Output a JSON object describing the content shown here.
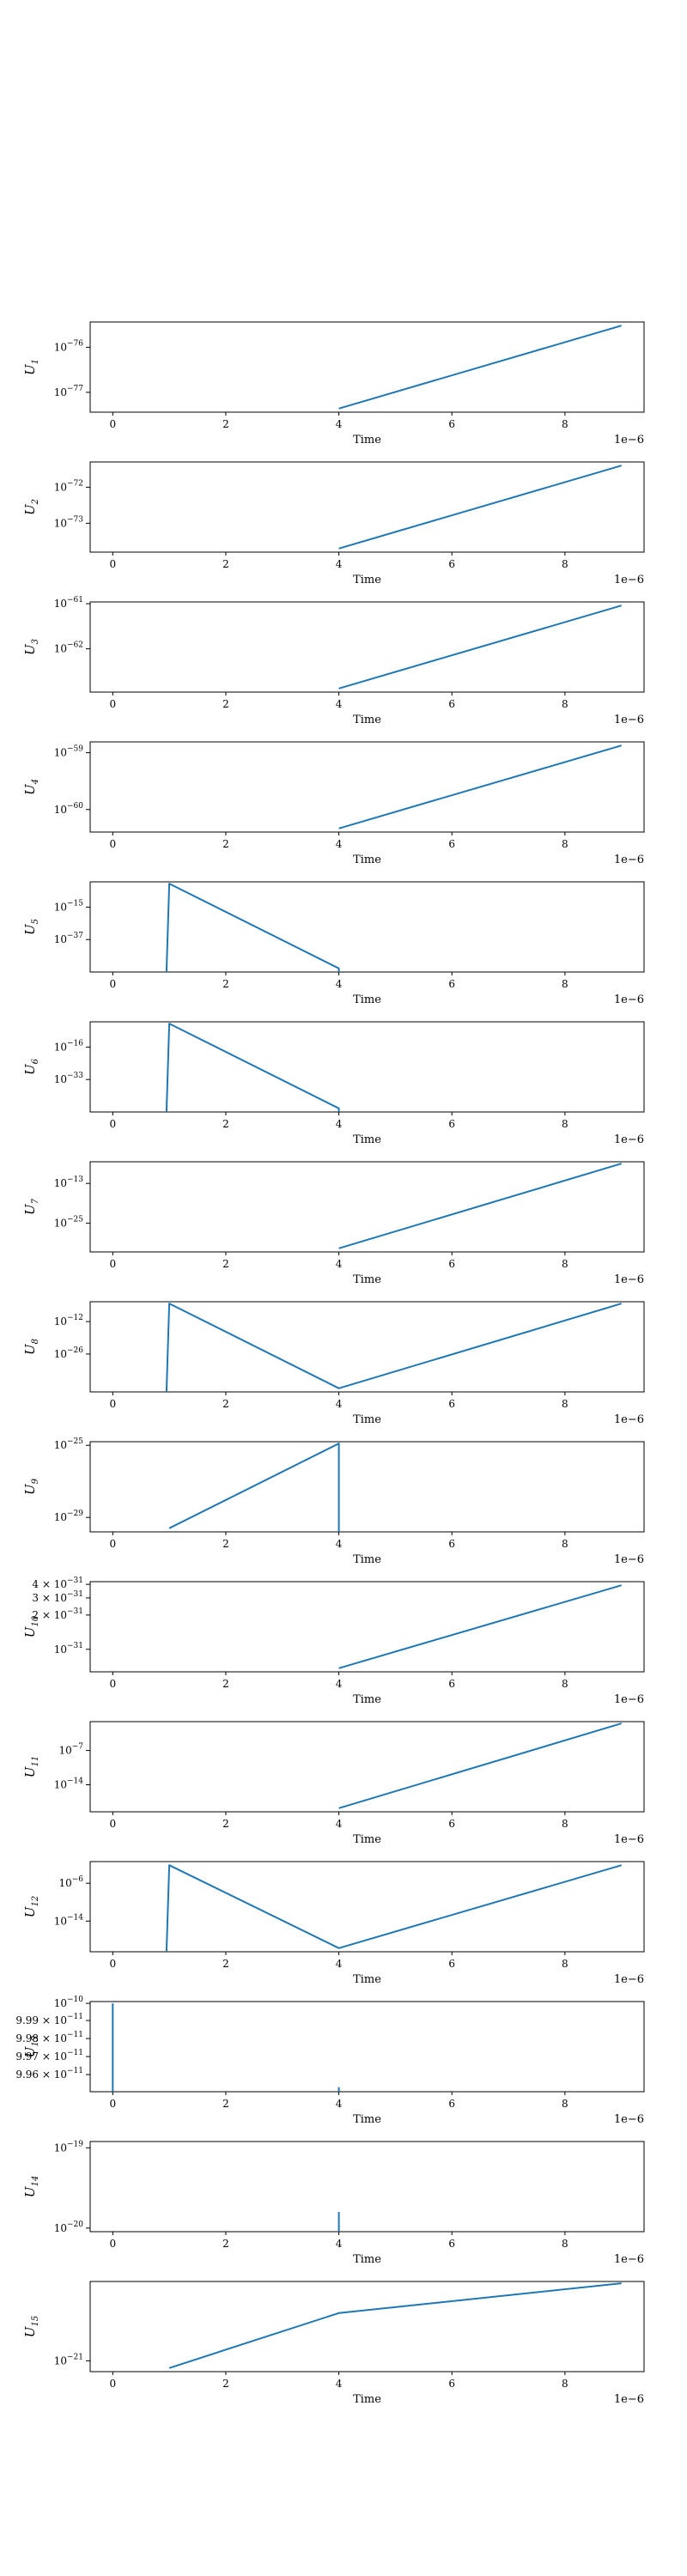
{
  "chart_data": [
    {
      "type": "line",
      "ylabel": "U_1",
      "sub": "1",
      "xlabel": "Time",
      "offset": "1e−6",
      "xlim": [
        -0.4,
        9.4
      ],
      "xticks": [
        "0",
        "2",
        "4",
        "6",
        "8"
      ],
      "yticks": [
        {
          "label": "10",
          "exp": "−76",
          "pos": 0.72
        },
        {
          "label": "10",
          "exp": "−77",
          "pos": 0.22
        }
      ],
      "x": [
        4.0,
        9.0
      ],
      "y_norm": [
        0.04,
        0.96
      ]
    },
    {
      "type": "line",
      "ylabel": "U_2",
      "sub": "2",
      "xlabel": "Time",
      "offset": "1e−6",
      "xlim": [
        -0.4,
        9.4
      ],
      "xticks": [
        "0",
        "2",
        "4",
        "6",
        "8"
      ],
      "yticks": [
        {
          "label": "10",
          "exp": "−72",
          "pos": 0.72
        },
        {
          "label": "10",
          "exp": "−73",
          "pos": 0.32
        }
      ],
      "x": [
        4.0,
        9.0
      ],
      "y_norm": [
        0.04,
        0.96
      ]
    },
    {
      "type": "line",
      "ylabel": "U_3",
      "sub": "3",
      "xlabel": "Time",
      "offset": "1e−6",
      "xlim": [
        -0.4,
        9.4
      ],
      "xticks": [
        "0",
        "2",
        "4",
        "6",
        "8"
      ],
      "yticks": [
        {
          "label": "10",
          "exp": "−61",
          "pos": 0.98
        },
        {
          "label": "10",
          "exp": "−62",
          "pos": 0.48
        }
      ],
      "x": [
        4.0,
        9.0
      ],
      "y_norm": [
        0.04,
        0.96
      ]
    },
    {
      "type": "line",
      "ylabel": "U_4",
      "sub": "4",
      "xlabel": "Time",
      "offset": "1e−6",
      "xlim": [
        -0.4,
        9.4
      ],
      "xticks": [
        "0",
        "2",
        "4",
        "6",
        "8"
      ],
      "yticks": [
        {
          "label": "10",
          "exp": "−59",
          "pos": 0.88
        },
        {
          "label": "10",
          "exp": "−60",
          "pos": 0.25
        }
      ],
      "x": [
        4.0,
        9.0
      ],
      "y_norm": [
        0.04,
        0.96
      ]
    },
    {
      "type": "line",
      "ylabel": "U_5",
      "sub": "5",
      "xlabel": "Time",
      "offset": "1e−6",
      "xlim": [
        -0.4,
        9.4
      ],
      "xticks": [
        "0",
        "2",
        "4",
        "6",
        "8"
      ],
      "yticks": [
        {
          "label": "10",
          "exp": "−15",
          "pos": 0.72
        },
        {
          "label": "10",
          "exp": "−37",
          "pos": 0.36
        }
      ],
      "x": [
        0.95,
        1.0,
        4.0,
        4.0
      ],
      "y_norm": [
        0.0,
        0.98,
        0.04,
        0.0
      ]
    },
    {
      "type": "line",
      "ylabel": "U_6",
      "sub": "6",
      "xlabel": "Time",
      "offset": "1e−6",
      "xlim": [
        -0.4,
        9.4
      ],
      "xticks": [
        "0",
        "2",
        "4",
        "6",
        "8"
      ],
      "yticks": [
        {
          "label": "10",
          "exp": "−16",
          "pos": 0.72
        },
        {
          "label": "10",
          "exp": "−33",
          "pos": 0.36
        }
      ],
      "x": [
        0.95,
        1.0,
        4.0,
        4.0
      ],
      "y_norm": [
        0.0,
        0.98,
        0.04,
        0.0
      ]
    },
    {
      "type": "line",
      "ylabel": "U_7",
      "sub": "7",
      "xlabel": "Time",
      "offset": "1e−6",
      "xlim": [
        -0.4,
        9.4
      ],
      "xticks": [
        "0",
        "2",
        "4",
        "6",
        "8"
      ],
      "yticks": [
        {
          "label": "10",
          "exp": "−13",
          "pos": 0.76
        },
        {
          "label": "10",
          "exp": "−25",
          "pos": 0.32
        }
      ],
      "x": [
        4.0,
        9.0
      ],
      "y_norm": [
        0.04,
        0.98
      ]
    },
    {
      "type": "line",
      "ylabel": "U_8",
      "sub": "8",
      "xlabel": "Time",
      "offset": "1e−6",
      "xlim": [
        -0.4,
        9.4
      ],
      "xticks": [
        "0",
        "2",
        "4",
        "6",
        "8"
      ],
      "yticks": [
        {
          "label": "10",
          "exp": "−12",
          "pos": 0.78
        },
        {
          "label": "10",
          "exp": "−26",
          "pos": 0.42
        }
      ],
      "x": [
        0.95,
        1.0,
        4.0,
        9.0
      ],
      "y_norm": [
        0.0,
        0.98,
        0.04,
        0.98
      ]
    },
    {
      "type": "line",
      "ylabel": "U_9",
      "sub": "9",
      "xlabel": "Time",
      "offset": "1e−6",
      "xlim": [
        -0.4,
        9.4
      ],
      "xticks": [
        "0",
        "2",
        "4",
        "6",
        "8"
      ],
      "yticks": [
        {
          "label": "10",
          "exp": "−25",
          "pos": 0.96
        },
        {
          "label": "10",
          "exp": "−29",
          "pos": 0.16
        }
      ],
      "x": [
        1.0,
        4.0,
        4.0
      ],
      "y_norm": [
        0.04,
        0.98,
        0.0
      ]
    },
    {
      "type": "line",
      "ylabel": "U_10",
      "sub": "10",
      "xlabel": "Time",
      "offset": "1e−6",
      "xlim": [
        -0.4,
        9.4
      ],
      "xticks": [
        "0",
        "2",
        "4",
        "6",
        "8"
      ],
      "yticks": [
        {
          "label": "4 × 10",
          "exp": "−31",
          "pos": 0.97
        },
        {
          "label": "3 × 10",
          "exp": "−31",
          "pos": 0.82
        },
        {
          "label": "2 × 10",
          "exp": "−31",
          "pos": 0.63
        },
        {
          "label": "10",
          "exp": "−31",
          "pos": 0.25
        }
      ],
      "x": [
        4.0,
        9.0
      ],
      "y_norm": [
        0.04,
        0.96
      ]
    },
    {
      "type": "line",
      "ylabel": "U_11",
      "sub": "11",
      "xlabel": "Time",
      "offset": "1e−6",
      "xlim": [
        -0.4,
        9.4
      ],
      "xticks": [
        "0",
        "2",
        "4",
        "6",
        "8"
      ],
      "yticks": [
        {
          "label": "10",
          "exp": "−7",
          "pos": 0.68
        },
        {
          "label": "10",
          "exp": "−14",
          "pos": 0.3
        }
      ],
      "x": [
        4.0,
        9.0
      ],
      "y_norm": [
        0.04,
        0.98
      ]
    },
    {
      "type": "line",
      "ylabel": "U_12",
      "sub": "12",
      "xlabel": "Time",
      "offset": "1e−6",
      "xlim": [
        -0.4,
        9.4
      ],
      "xticks": [
        "0",
        "2",
        "4",
        "6",
        "8"
      ],
      "yticks": [
        {
          "label": "10",
          "exp": "−6",
          "pos": 0.76
        },
        {
          "label": "10",
          "exp": "−14",
          "pos": 0.34
        }
      ],
      "x": [
        0.95,
        1.0,
        4.0,
        9.0
      ],
      "y_norm": [
        0.0,
        0.96,
        0.04,
        0.96
      ]
    },
    {
      "type": "line",
      "ylabel": "U_13",
      "sub": "13",
      "xlabel": "Time",
      "offset": "1e−6",
      "xlim": [
        -0.4,
        9.4
      ],
      "xticks": [
        "0",
        "2",
        "4",
        "6",
        "8"
      ],
      "yticks": [
        {
          "label": "10",
          "exp": "−10",
          "pos": 0.98
        },
        {
          "label": "9.99 × 10",
          "exp": "−11",
          "pos": 0.79
        },
        {
          "label": "9.98 × 10",
          "exp": "−11",
          "pos": 0.59
        },
        {
          "label": "9.97 × 10",
          "exp": "−11",
          "pos": 0.39
        },
        {
          "label": "9.96 × 10",
          "exp": "−11",
          "pos": 0.19
        }
      ],
      "x": [
        0.0,
        0.0,
        null,
        4.0,
        4.0
      ],
      "y_norm": [
        0.0,
        0.98,
        null,
        0.0,
        0.05
      ]
    },
    {
      "type": "line",
      "ylabel": "U_14",
      "sub": "14",
      "xlabel": "Time",
      "offset": "1e−6",
      "xlim": [
        -0.4,
        9.4
      ],
      "xticks": [
        "0",
        "2",
        "4",
        "6",
        "8"
      ],
      "yticks": [
        {
          "label": "10",
          "exp": "−19",
          "pos": 0.93
        },
        {
          "label": "10",
          "exp": "−20",
          "pos": 0.04
        }
      ],
      "x": [
        4.0,
        4.0
      ],
      "y_norm": [
        0.0,
        0.22
      ]
    },
    {
      "type": "line",
      "ylabel": "U_15",
      "sub": "15",
      "xlabel": "Time",
      "offset": "1e−6",
      "xlim": [
        -0.4,
        9.4
      ],
      "xticks": [
        "0",
        "2",
        "4",
        "6",
        "8"
      ],
      "yticks": [
        {
          "label": "10",
          "exp": "−21",
          "pos": 0.12
        }
      ],
      "x": [
        1.0,
        4.0,
        9.0
      ],
      "y_norm": [
        0.04,
        0.65,
        0.98
      ]
    }
  ]
}
